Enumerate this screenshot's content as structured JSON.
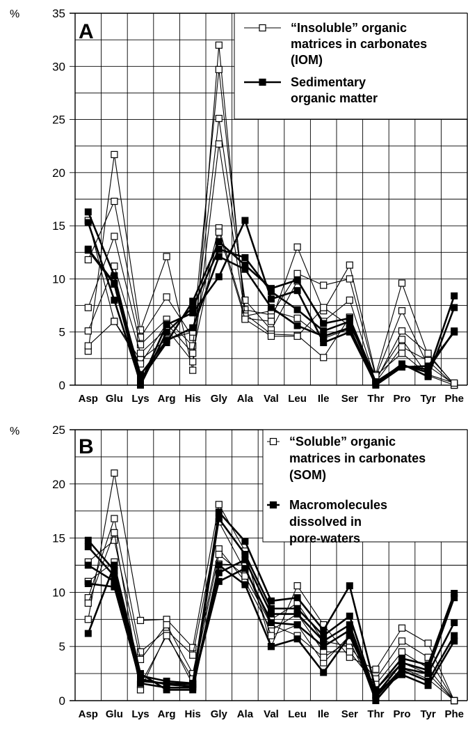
{
  "chart_data": [
    {
      "type": "line",
      "panel_label": "A",
      "y_unit": "%",
      "ylim": [
        0,
        35
      ],
      "yticks": [
        0,
        5,
        10,
        15,
        20,
        25,
        30,
        35
      ],
      "categories": [
        "Asp",
        "Glu",
        "Lys",
        "Arg",
        "His",
        "Gly",
        "Ala",
        "Val",
        "Leu",
        "Ile",
        "Ser",
        "Thr",
        "Pro",
        "Tyr",
        "Phe"
      ],
      "grid": true,
      "legend_position": "top-right",
      "legend": [
        {
          "label": "“Insoluble” organic matrices in carbonates (IOM)",
          "lines": [
            "“Insoluble” organic",
            "matrices in carbonates",
            "(IOM)"
          ],
          "marker": "open-square"
        },
        {
          "label": "Sedimentary organic matter",
          "lines": [
            "Sedimentary",
            "organic matter"
          ],
          "marker": "filled-square"
        }
      ],
      "series": [
        {
          "group": 0,
          "values": [
            3.2,
            21.7,
            5.2,
            12.1,
            1.4,
            32.0,
            6.3,
            6.0,
            13.0,
            7.0,
            11.3,
            1.0,
            9.6,
            2.8,
            0.1
          ]
        },
        {
          "group": 0,
          "values": [
            11.8,
            17.3,
            4.5,
            8.3,
            4.5,
            29.7,
            7.1,
            6.6,
            10.5,
            9.4,
            10.0,
            0.8,
            7.0,
            1.8,
            0.1
          ]
        },
        {
          "group": 0,
          "values": [
            7.3,
            14.0,
            3.8,
            6.2,
            3.7,
            25.1,
            8.0,
            5.2,
            9.8,
            6.0,
            8.0,
            0.4,
            5.1,
            3.0,
            0.0
          ]
        },
        {
          "group": 0,
          "values": [
            5.1,
            11.2,
            3.0,
            5.3,
            2.2,
            22.7,
            6.7,
            4.8,
            4.7,
            2.6,
            6.4,
            0.6,
            4.3,
            0.9,
            0.0
          ]
        },
        {
          "group": 0,
          "values": [
            3.7,
            6.0,
            2.4,
            4.3,
            5.0,
            14.8,
            6.5,
            7.0,
            6.3,
            4.4,
            5.3,
            0.3,
            3.6,
            2.3,
            0.0
          ]
        },
        {
          "group": 0,
          "values": [
            15.5,
            6.0,
            2.0,
            5.8,
            3.0,
            14.4,
            6.2,
            4.6,
            4.6,
            7.3,
            5.6,
            0.9,
            3.0,
            1.0,
            0.2
          ]
        },
        {
          "group": 1,
          "values": [
            16.3,
            10.3,
            0.5,
            4.0,
            7.9,
            13.5,
            11.3,
            9.1,
            9.9,
            5.8,
            6.3,
            0.3,
            1.9,
            1.2,
            8.4
          ]
        },
        {
          "group": 1,
          "values": [
            15.3,
            8.0,
            0.2,
            5.7,
            6.8,
            10.2,
            15.5,
            8.1,
            8.9,
            4.0,
            5.0,
            0.1,
            2.0,
            0.8,
            7.3
          ]
        },
        {
          "group": 1,
          "values": [
            12.7,
            9.5,
            0.0,
            5.0,
            7.3,
            12.8,
            12.0,
            8.8,
            7.1,
            5.1,
            6.0,
            0.2,
            1.8,
            1.5,
            5.1
          ]
        },
        {
          "group": 1,
          "values": [
            12.8,
            9.6,
            1.0,
            4.2,
            5.4,
            12.1,
            10.9,
            7.3,
            5.6,
            4.6,
            5.4,
            0.0,
            1.7,
            1.8,
            5.0
          ]
        }
      ]
    },
    {
      "type": "line",
      "panel_label": "B",
      "y_unit": "%",
      "ylim": [
        0,
        25
      ],
      "yticks": [
        0,
        5,
        10,
        15,
        20,
        25
      ],
      "categories": [
        "Asp",
        "Glu",
        "Lys",
        "Arg",
        "His",
        "Gly",
        "Ala",
        "Val",
        "Leu",
        "Ile",
        "Ser",
        "Thr",
        "Pro",
        "Tyr",
        "Phe"
      ],
      "grid": true,
      "legend_position": "top-right",
      "legend": [
        {
          "label": "“Soluble” organic matrices in carbonates (SOM)",
          "lines": [
            "“Soluble” organic",
            "matrices in carbonates",
            "(SOM)"
          ],
          "marker": "open-square"
        },
        {
          "label": "Macromolecules dissolved in pore-waters",
          "lines": [
            "Macromolecules",
            "dissolved in",
            "pore-waters"
          ],
          "marker": "filled-square"
        }
      ],
      "series": [
        {
          "group": 0,
          "values": [
            7.5,
            21.0,
            7.4,
            7.5,
            4.9,
            18.1,
            13.8,
            5.0,
            10.6,
            7.0,
            4.0,
            2.9,
            6.7,
            5.3,
            0.0
          ]
        },
        {
          "group": 0,
          "values": [
            9.5,
            16.8,
            4.5,
            6.5,
            4.2,
            16.5,
            12.0,
            7.5,
            9.0,
            5.5,
            5.0,
            2.0,
            5.5,
            4.0,
            0.0
          ]
        },
        {
          "group": 0,
          "values": [
            12.8,
            14.8,
            3.8,
            7.0,
            2.5,
            14.0,
            11.0,
            6.5,
            8.0,
            4.5,
            4.5,
            1.5,
            4.5,
            3.0,
            0.0
          ]
        },
        {
          "group": 0,
          "values": [
            11.0,
            12.8,
            1.0,
            6.2,
            1.5,
            12.6,
            12.5,
            6.0,
            7.0,
            3.5,
            6.0,
            1.0,
            3.5,
            2.5,
            0.0
          ]
        },
        {
          "group": 0,
          "values": [
            9.0,
            15.5,
            1.5,
            6.0,
            2.0,
            13.5,
            11.5,
            7.0,
            6.0,
            4.0,
            5.5,
            0.5,
            3.0,
            2.0,
            0.0
          ]
        },
        {
          "group": 1,
          "values": [
            14.8,
            12.0,
            2.3,
            1.8,
            1.6,
            17.4,
            14.7,
            9.2,
            9.5,
            6.5,
            10.6,
            1.0,
            3.9,
            3.3,
            9.9
          ]
        },
        {
          "group": 1,
          "values": [
            14.2,
            11.5,
            2.0,
            1.5,
            1.3,
            16.8,
            13.5,
            8.5,
            8.5,
            6.0,
            7.8,
            0.5,
            3.5,
            2.8,
            9.5
          ]
        },
        {
          "group": 1,
          "values": [
            12.5,
            11.0,
            1.6,
            1.2,
            1.2,
            11.8,
            13.0,
            8.0,
            8.0,
            5.5,
            7.0,
            0.3,
            3.0,
            2.5,
            7.2
          ]
        },
        {
          "group": 1,
          "values": [
            10.8,
            10.5,
            1.8,
            1.6,
            1.5,
            11.0,
            12.2,
            7.2,
            7.0,
            5.0,
            6.5,
            0.0,
            2.8,
            1.8,
            6.0
          ]
        },
        {
          "group": 1,
          "values": [
            6.2,
            12.5,
            2.5,
            1.0,
            1.0,
            12.5,
            10.7,
            5.0,
            5.7,
            2.6,
            6.0,
            0.8,
            2.4,
            1.4,
            5.5
          ]
        }
      ]
    }
  ]
}
